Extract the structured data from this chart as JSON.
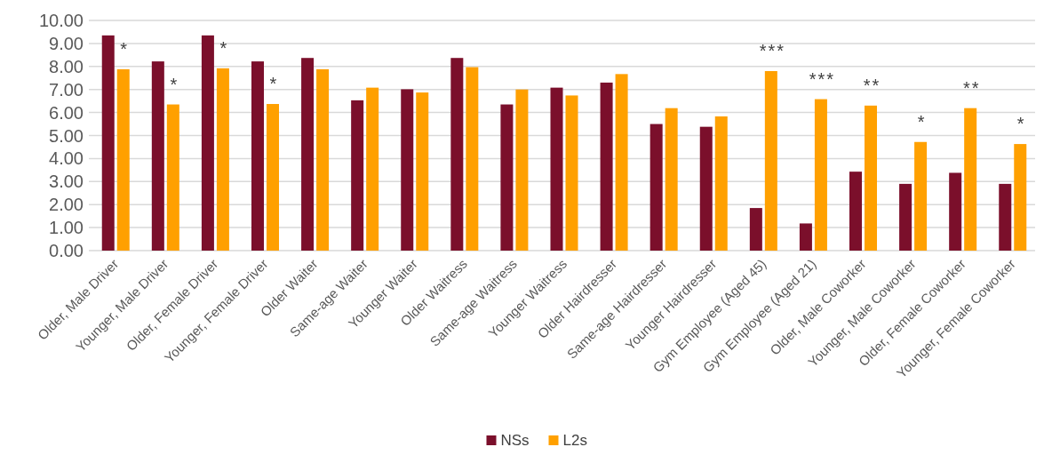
{
  "chart_data": {
    "type": "bar",
    "categories": [
      "Older, Male Driver",
      "Younger, Male Driver",
      "Older, Female Driver",
      "Younger, Female Driver",
      "Older Waiter",
      "Same-age Waiter",
      "Younger Waiter",
      "Older Waitress",
      "Same-age Waitress",
      "Younger Waitress",
      "Older Hairdresser",
      "Same-age Hairdresser",
      "Younger Hairdresser",
      "Gym Employee (Aged 45)",
      "Gym Employee  (Aged 21)",
      "Older, Male Coworker",
      "Younger, Male Coworker",
      "Older, Female Coworker",
      "Younger, Female Coworker"
    ],
    "series": [
      {
        "name": "NSs",
        "color": "#7b0f2b",
        "values": [
          9.35,
          8.22,
          9.35,
          8.22,
          8.37,
          6.53,
          7.01,
          8.37,
          6.35,
          7.08,
          7.3,
          5.5,
          5.38,
          1.85,
          1.18,
          3.43,
          2.9,
          3.38,
          2.9
        ]
      },
      {
        "name": "L2s",
        "color": "#ffa000",
        "values": [
          7.88,
          6.35,
          7.92,
          6.37,
          7.88,
          7.08,
          6.87,
          7.97,
          7.0,
          6.74,
          7.67,
          6.19,
          5.83,
          7.8,
          6.58,
          6.3,
          4.72,
          6.19,
          4.63
        ]
      }
    ],
    "ylim": [
      0,
      10
    ],
    "yticks": [
      {
        "value": 0,
        "label": "0.00"
      },
      {
        "value": 1,
        "label": "1.00"
      },
      {
        "value": 2,
        "label": "2.00"
      },
      {
        "value": 3,
        "label": "3.00"
      },
      {
        "value": 4,
        "label": "4.00"
      },
      {
        "value": 5,
        "label": "5.00"
      },
      {
        "value": 6,
        "label": "6.00"
      },
      {
        "value": 7,
        "label": "7.00"
      },
      {
        "value": 8,
        "label": "8.00"
      },
      {
        "value": 9,
        "label": "9.00"
      },
      {
        "value": 10,
        "label": "10.00"
      }
    ],
    "grid": "y",
    "legend": "bottom",
    "annotations": [
      {
        "text": "*",
        "x": "Older, Male Driver",
        "y": 7.88
      },
      {
        "text": "*",
        "x": "Younger, Male Driver",
        "y": 6.35
      },
      {
        "text": "*",
        "x": "Older, Female Driver",
        "y": 7.92
      },
      {
        "text": "*",
        "x": "Younger, Female Driver",
        "y": 6.37
      },
      {
        "text": "***",
        "x": "Gym Employee (Aged 45)",
        "y": 7.8
      },
      {
        "text": "***",
        "x": "Gym Employee  (Aged 21)",
        "y": 6.58
      },
      {
        "text": "**",
        "x": "Older, Male Coworker",
        "y": 6.3
      },
      {
        "text": "*",
        "x": "Younger, Male Coworker",
        "y": 4.72
      },
      {
        "text": "**",
        "x": "Older, Female Coworker",
        "y": 6.19
      },
      {
        "text": "*",
        "x": "Younger, Female Coworker",
        "y": 4.63
      }
    ]
  }
}
